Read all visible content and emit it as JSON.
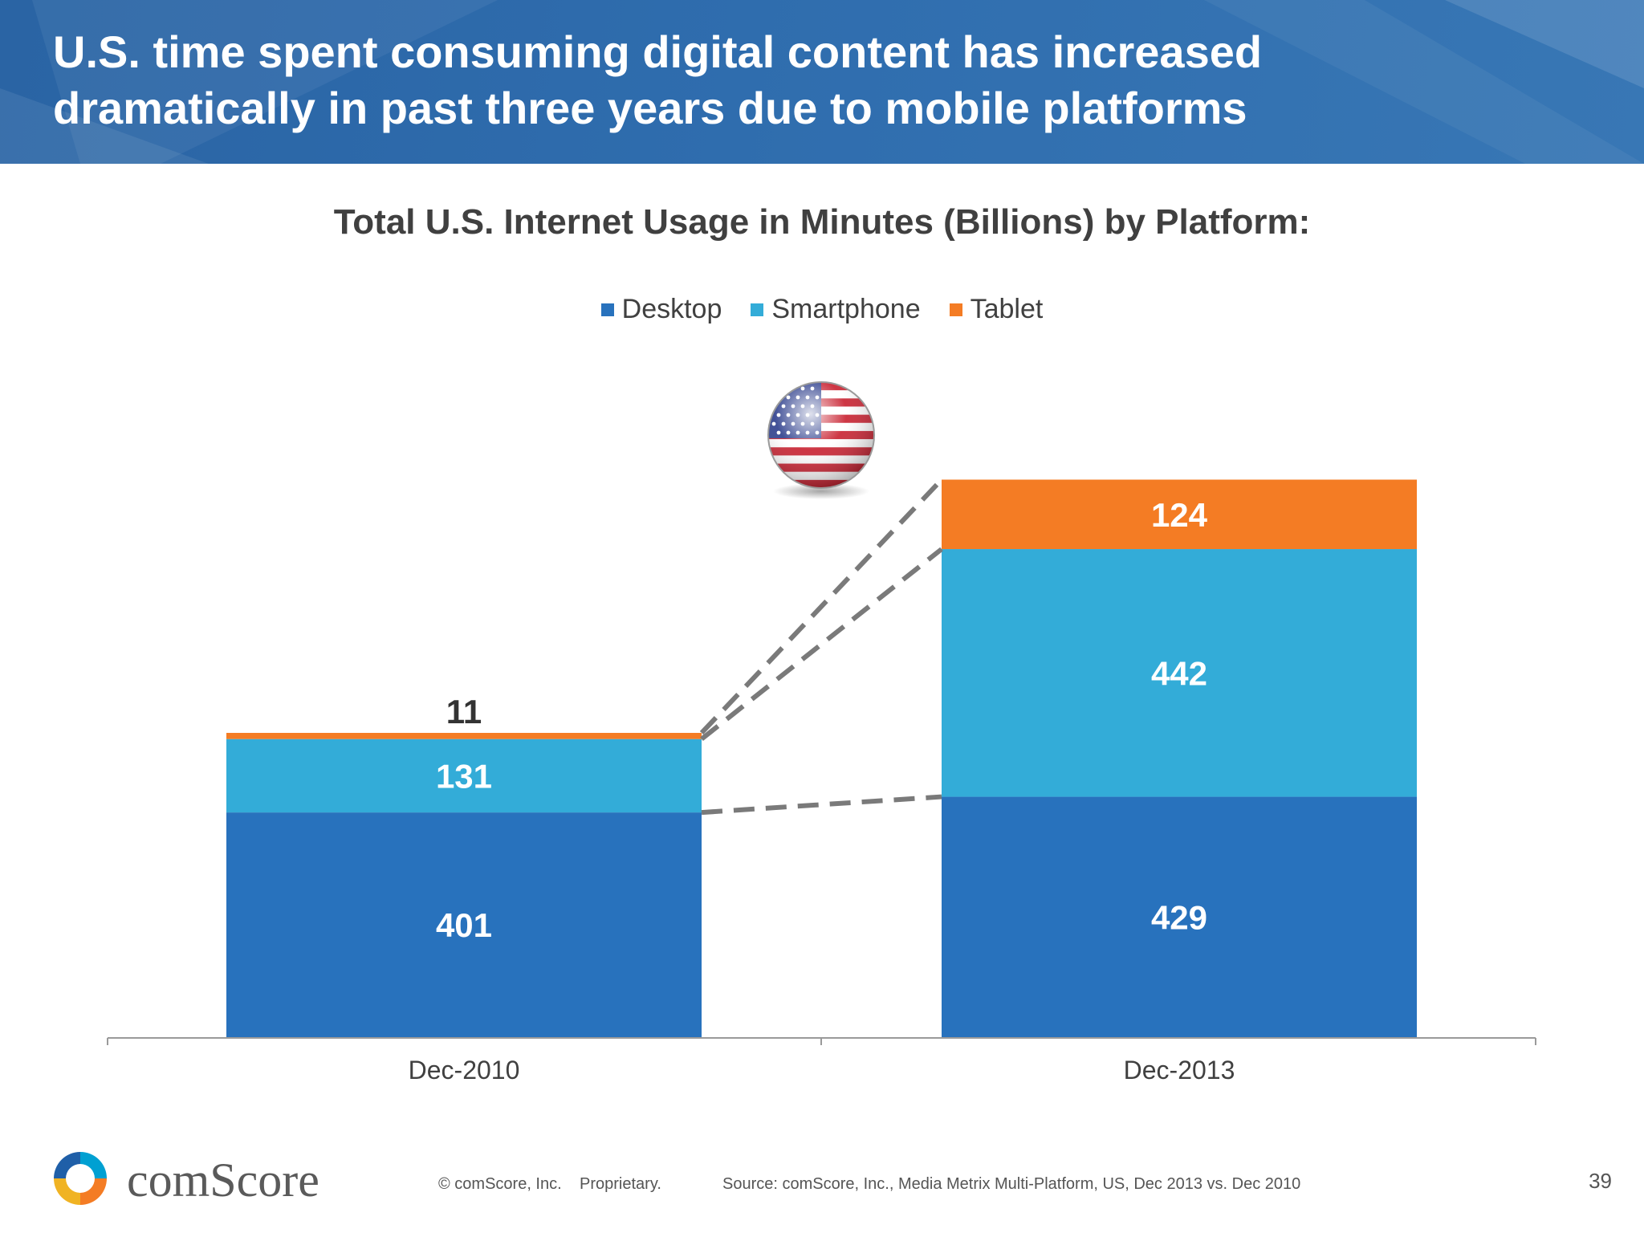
{
  "header": {
    "title_line1": "U.S. time spent consuming digital content has increased",
    "title_line2": "dramatically in past three years due to mobile platforms"
  },
  "chart_data": {
    "type": "bar",
    "stacked": true,
    "title": "Total U.S. Internet Usage in Minutes (Billions) by Platform:",
    "categories": [
      "Dec-2010",
      "Dec-2013"
    ],
    "series": [
      {
        "name": "Desktop",
        "values": [
          401,
          429
        ],
        "color": "#2872bd"
      },
      {
        "name": "Smartphone",
        "values": [
          131,
          442
        ],
        "color": "#33acd8"
      },
      {
        "name": "Tablet",
        "values": [
          11,
          124
        ],
        "color": "#f47c24"
      }
    ],
    "legend": "top-center",
    "ylim": [
      0,
      1000
    ],
    "grid": false,
    "labels": {
      "Dec-2010": [
        "401",
        "131",
        "11"
      ],
      "Dec-2013": [
        "429",
        "442",
        "124"
      ]
    }
  },
  "footer": {
    "logo_text": "comScore",
    "copyright": "© comScore, Inc.",
    "proprietary": "Proprietary.",
    "source": "Source: comScore, Inc., Media Metrix Multi-Platform, US, Dec 2013 vs. Dec 2010",
    "page_number": "39"
  },
  "icons": {
    "flag": "us-flag-globe-icon",
    "logo": "comscore-logo-icon"
  }
}
